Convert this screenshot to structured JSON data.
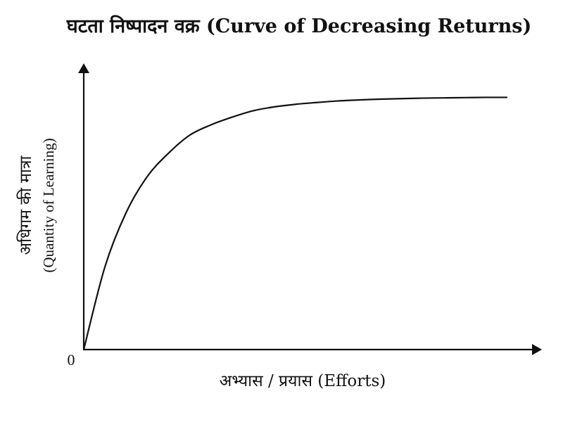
{
  "chart_data": {
    "type": "line",
    "title": "घटता निष्पादन वक्र (Curve of Decreasing Returns)",
    "xlabel": "अभ्यास / प्रयास (Efforts)",
    "ylabel_line1": "अधिगम की मात्रा",
    "ylabel_line2": "(Quantity of Learning)",
    "origin_label": "0",
    "xlim": [
      0,
      1
    ],
    "ylim": [
      0,
      1
    ],
    "grid": false,
    "legend": "none",
    "series": [
      {
        "x": [
          0,
          0.05,
          0.1,
          0.15,
          0.2,
          0.25,
          0.3,
          0.35,
          0.4,
          0.45,
          0.5,
          0.55,
          0.6,
          0.65,
          0.7,
          0.75,
          0.8,
          0.85,
          0.9,
          0.95,
          1.0
        ],
        "values": [
          0,
          0.32,
          0.53,
          0.67,
          0.76,
          0.83,
          0.87,
          0.9,
          0.925,
          0.94,
          0.95,
          0.957,
          0.963,
          0.967,
          0.97,
          0.972,
          0.974,
          0.975,
          0.976,
          0.977,
          0.977
        ]
      }
    ],
    "colors": {
      "line": "#111111",
      "axis": "#111111"
    }
  }
}
